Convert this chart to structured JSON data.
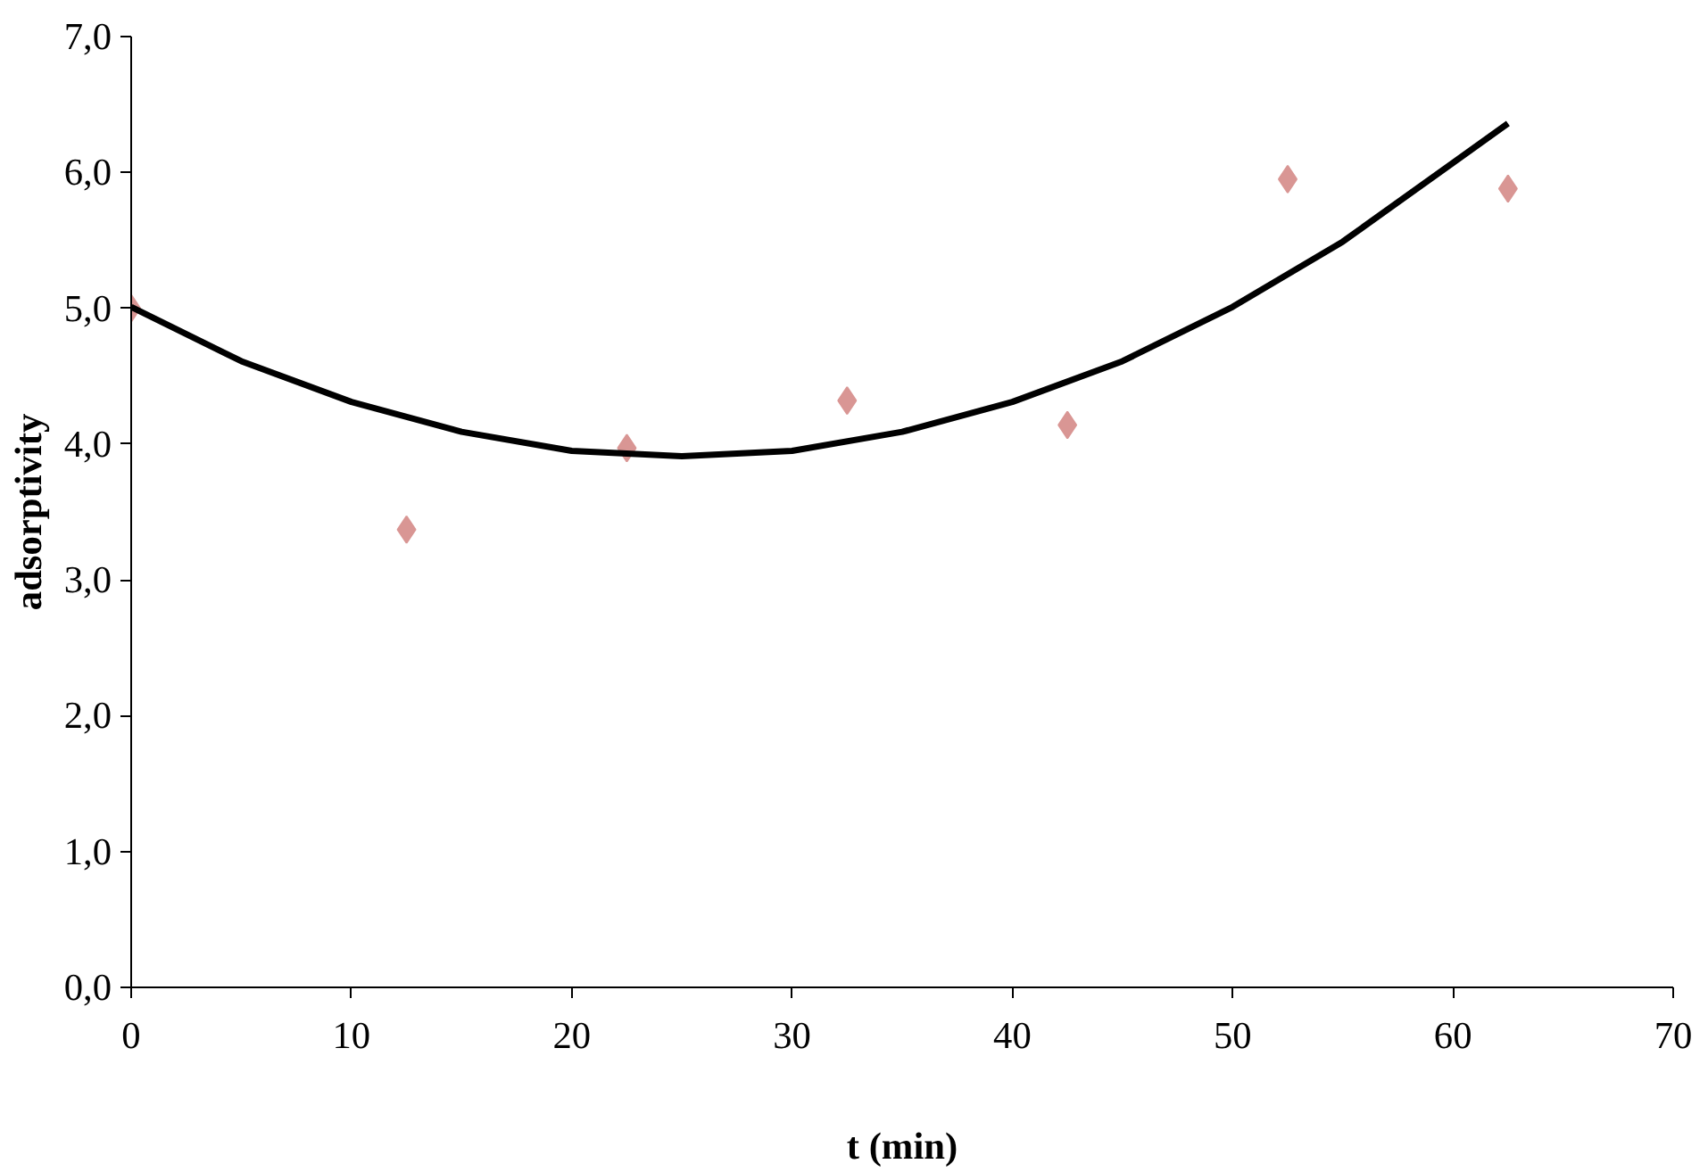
{
  "chart_data": {
    "type": "scatter",
    "xlabel": "t (min)",
    "ylabel": "adsorptivity",
    "xlim": [
      0,
      70
    ],
    "xticks": [
      0,
      10,
      20,
      30,
      40,
      50,
      60,
      70
    ],
    "ylim": [
      0,
      7
    ],
    "yticks": [
      {
        "value": 0,
        "label": "0,0"
      },
      {
        "value": 1,
        "label": "1,0"
      },
      {
        "value": 2,
        "label": "2,0"
      },
      {
        "value": 3,
        "label": "3,0"
      },
      {
        "value": 4,
        "label": "4,0"
      },
      {
        "value": 5,
        "label": "5,0"
      },
      {
        "value": 6,
        "label": "6,0"
      },
      {
        "value": 7,
        "label": "7,0"
      }
    ],
    "grid": false,
    "series": [
      {
        "marker": "diamond",
        "color": "#d99694",
        "x": [
          0,
          12.5,
          22.5,
          32.5,
          42.5,
          52.5,
          62.5
        ],
        "values": [
          5.0,
          3.37,
          3.97,
          4.32,
          4.14,
          5.95,
          5.88
        ]
      },
      {
        "type": "line",
        "line_style": "solid",
        "color": "#000000",
        "x": [
          0,
          5,
          10,
          15,
          20,
          25,
          30,
          35,
          40,
          45,
          50,
          55,
          60,
          62.5
        ],
        "values": [
          5.01,
          4.61,
          4.31,
          4.09,
          3.95,
          3.91,
          3.95,
          4.09,
          4.31,
          4.61,
          5.01,
          5.49,
          6.07,
          6.36
        ]
      }
    ]
  }
}
